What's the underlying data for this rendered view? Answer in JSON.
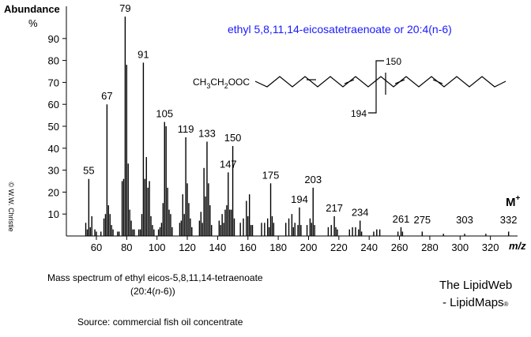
{
  "chart_data": {
    "type": "stick",
    "title": "ethyl 5,8,11,14-eicosatetraenoate or 20:4(n-6)",
    "y_label": "Abundance",
    "y_unit": "%",
    "x_label": "m/z",
    "molecular_ion": {
      "label": "M",
      "charge": "+"
    },
    "color": "#000000",
    "title_color": "#1a1aff",
    "xlim": [
      40,
      340
    ],
    "xticks": [
      60,
      80,
      100,
      120,
      140,
      160,
      180,
      200,
      220,
      240,
      260,
      280,
      300,
      320
    ],
    "ylim": [
      0,
      100
    ],
    "yticks": [
      10,
      20,
      30,
      40,
      50,
      60,
      70,
      80,
      90
    ],
    "x": [
      53,
      54,
      55,
      56,
      57,
      59,
      60,
      63,
      65,
      66,
      67,
      68,
      69,
      70,
      71,
      74,
      75,
      77,
      78,
      79,
      80,
      81,
      82,
      83,
      84,
      85,
      88,
      89,
      90,
      91,
      92,
      93,
      94,
      95,
      96,
      97,
      98,
      101,
      102,
      103,
      104,
      105,
      106,
      107,
      108,
      109,
      110,
      115,
      116,
      117,
      118,
      119,
      120,
      121,
      122,
      123,
      128,
      129,
      130,
      131,
      132,
      133,
      134,
      135,
      136,
      141,
      142,
      143,
      144,
      145,
      146,
      147,
      148,
      149,
      150,
      151,
      155,
      157,
      159,
      160,
      161,
      162,
      163,
      169,
      171,
      173,
      174,
      175,
      176,
      177,
      185,
      187,
      189,
      190,
      191,
      193,
      194,
      195,
      199,
      201,
      202,
      203,
      204,
      213,
      215,
      217,
      218,
      219,
      227,
      229,
      231,
      233,
      234,
      235,
      243,
      245,
      247,
      259,
      261,
      262,
      275,
      289,
      303,
      317,
      332
    ],
    "values": [
      6,
      3,
      26,
      4,
      9,
      3,
      2,
      2,
      8,
      10,
      60,
      14,
      10,
      5,
      3,
      2,
      2,
      25,
      26,
      100,
      78,
      33,
      12,
      7,
      3,
      3,
      3,
      3,
      10,
      79,
      26,
      36,
      22,
      25,
      9,
      5,
      3,
      3,
      4,
      6,
      15,
      52,
      50,
      22,
      12,
      10,
      4,
      6,
      7,
      19,
      10,
      45,
      24,
      15,
      8,
      4,
      7,
      11,
      6,
      31,
      18,
      43,
      24,
      14,
      5,
      7,
      5,
      10,
      6,
      12,
      14,
      29,
      12,
      12,
      41,
      8,
      6,
      8,
      16,
      9,
      19,
      5,
      5,
      6,
      6,
      8,
      4,
      24,
      9,
      6,
      6,
      8,
      10,
      4,
      6,
      5,
      13,
      5,
      5,
      8,
      6,
      22,
      5,
      4,
      5,
      9,
      4,
      3,
      3,
      4,
      4,
      3,
      7,
      2,
      2,
      3,
      3,
      2,
      4,
      2,
      2,
      1,
      1,
      1,
      2
    ],
    "labeled_peaks": [
      55,
      67,
      79,
      91,
      105,
      119,
      133,
      147,
      150,
      175,
      194,
      203,
      217,
      234,
      261,
      275,
      303,
      332
    ]
  },
  "structure": {
    "groups": [
      "CH",
      "3",
      "CH",
      "2",
      "OOC"
    ],
    "fragments": [
      "150",
      "194"
    ]
  },
  "caption": {
    "line1": "Mass spectrum of ethyl eicos-5,8,11,14-tetraenoate",
    "line2": [
      "(20:4(",
      "n",
      "-6))"
    ],
    "source": "Source:  commercial fish oil concentrate"
  },
  "branding": {
    "site": "The LipidWeb",
    "partner": "- LipidMaps",
    "mark": "®",
    "copyright": "© W.W. Christie"
  }
}
